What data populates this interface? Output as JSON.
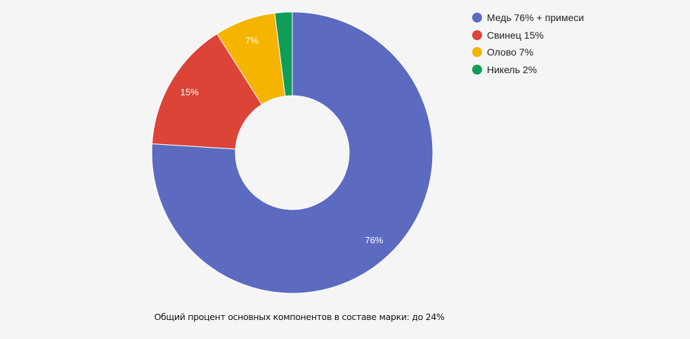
{
  "chart_data": {
    "type": "pie",
    "donut": true,
    "slices": [
      {
        "legend": "Медь 76% + примеси",
        "label": "76%",
        "value": 76,
        "color": "#5c6bc0"
      },
      {
        "legend": "Свинец 15%",
        "label": "15%",
        "value": 15,
        "color": "#db4437"
      },
      {
        "legend": "Олово 7%",
        "label": "7%",
        "value": 7,
        "color": "#f4b400"
      },
      {
        "legend": "Никель 2%",
        "label": "",
        "value": 2,
        "color": "#0f9d58"
      }
    ],
    "legend_position": "top-right",
    "caption": "Общий процент основных компонентов в составе марки: до 24%"
  }
}
